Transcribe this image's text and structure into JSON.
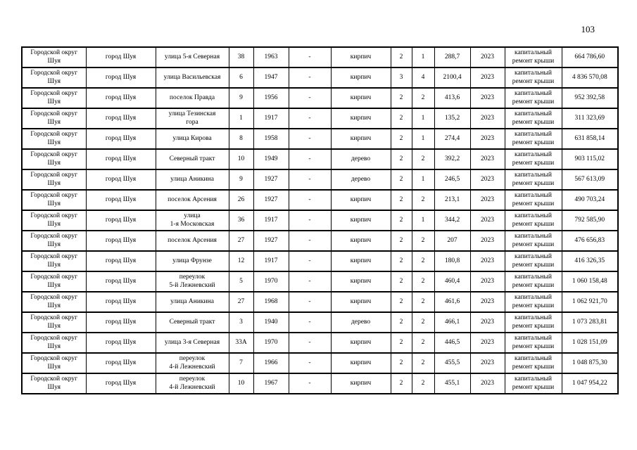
{
  "page": {
    "number": "103"
  },
  "table": {
    "column_keys": [
      "district",
      "settlement",
      "street",
      "house",
      "year_built",
      "dash",
      "material",
      "floors",
      "entrances",
      "area",
      "plan_year",
      "work_type",
      "cost"
    ],
    "rows": [
      {
        "district": "Городской округ\nШуя",
        "settlement": "город Шуя",
        "street": "улица 5-я Северная",
        "house": "38",
        "year_built": "1963",
        "dash": "-",
        "material": "кирпич",
        "floors": "2",
        "entrances": "1",
        "area": "288,7",
        "plan_year": "2023",
        "work_type": "капитальный\nремонт крыши",
        "cost": "664 786,60"
      },
      {
        "district": "Городской округ\nШуя",
        "settlement": "город Шуя",
        "street": "улица Васильевская",
        "house": "6",
        "year_built": "1947",
        "dash": "-",
        "material": "кирпич",
        "floors": "3",
        "entrances": "4",
        "area": "2100,4",
        "plan_year": "2023",
        "work_type": "капитальный\nремонт крыши",
        "cost": "4 836 570,08"
      },
      {
        "district": "Городской округ\nШуя",
        "settlement": "город Шуя",
        "street": "поселок Правда",
        "house": "9",
        "year_built": "1956",
        "dash": "-",
        "material": "кирпич",
        "floors": "2",
        "entrances": "2",
        "area": "413,6",
        "plan_year": "2023",
        "work_type": "капитальный\nремонт крыши",
        "cost": "952 392,58"
      },
      {
        "district": "Городской округ\nШуя",
        "settlement": "город Шуя",
        "street": "улица Тезинская\nгора",
        "house": "1",
        "year_built": "1917",
        "dash": "-",
        "material": "кирпич",
        "floors": "2",
        "entrances": "1",
        "area": "135,2",
        "plan_year": "2023",
        "work_type": "капитальный\nремонт крыши",
        "cost": "311 323,69"
      },
      {
        "district": "Городской округ\nШуя",
        "settlement": "город Шуя",
        "street": "улица Кирова",
        "house": "8",
        "year_built": "1958",
        "dash": "-",
        "material": "кирпич",
        "floors": "2",
        "entrances": "1",
        "area": "274,4",
        "plan_year": "2023",
        "work_type": "капитальный\nремонт крыши",
        "cost": "631 858,14"
      },
      {
        "district": "Городской округ\nШуя",
        "settlement": "город Шуя",
        "street": "Северный тракт",
        "house": "10",
        "year_built": "1949",
        "dash": "-",
        "material": "дерево",
        "floors": "2",
        "entrances": "2",
        "area": "392,2",
        "plan_year": "2023",
        "work_type": "капитальный\nремонт крыши",
        "cost": "903 115,02"
      },
      {
        "district": "Городской округ\nШуя",
        "settlement": "город Шуя",
        "street": "улица Аникина",
        "house": "9",
        "year_built": "1927",
        "dash": "-",
        "material": "дерево",
        "floors": "2",
        "entrances": "1",
        "area": "246,5",
        "plan_year": "2023",
        "work_type": "капитальный\nремонт крыши",
        "cost": "567 613,09"
      },
      {
        "district": "Городской округ\nШуя",
        "settlement": "город Шуя",
        "street": "поселок Арсения",
        "house": "26",
        "year_built": "1927",
        "dash": "-",
        "material": "кирпич",
        "floors": "2",
        "entrances": "2",
        "area": "213,1",
        "plan_year": "2023",
        "work_type": "капитальный\nремонт крыши",
        "cost": "490 703,24"
      },
      {
        "district": "Городской округ\nШуя",
        "settlement": "город Шуя",
        "street": "улица\n1-я Московская",
        "house": "36",
        "year_built": "1917",
        "dash": "-",
        "material": "кирпич",
        "floors": "2",
        "entrances": "1",
        "area": "344,2",
        "plan_year": "2023",
        "work_type": "капитальный\nремонт крыши",
        "cost": "792 585,90"
      },
      {
        "district": "Городской округ\nШуя",
        "settlement": "город Шуя",
        "street": "поселок Арсения",
        "house": "27",
        "year_built": "1927",
        "dash": "-",
        "material": "кирпич",
        "floors": "2",
        "entrances": "2",
        "area": "207",
        "plan_year": "2023",
        "work_type": "капитальный\nремонт крыши",
        "cost": "476 656,83"
      },
      {
        "district": "Городской округ\nШуя",
        "settlement": "город Шуя",
        "street": "улица Фрунзе",
        "house": "12",
        "year_built": "1917",
        "dash": "-",
        "material": "кирпич",
        "floors": "2",
        "entrances": "2",
        "area": "180,8",
        "plan_year": "2023",
        "work_type": "капитальный\nремонт крыши",
        "cost": "416 326,35"
      },
      {
        "district": "Городской округ\nШуя",
        "settlement": "город Шуя",
        "street": "переулок\n5-й Лежневский",
        "house": "5",
        "year_built": "1970",
        "dash": "-",
        "material": "кирпич",
        "floors": "2",
        "entrances": "2",
        "area": "460,4",
        "plan_year": "2023",
        "work_type": "капитальный\nремонт крыши",
        "cost": "1 060 158,48"
      },
      {
        "district": "Городской округ\nШуя",
        "settlement": "город Шуя",
        "street": "улица Аникина",
        "house": "27",
        "year_built": "1968",
        "dash": "-",
        "material": "кирпич",
        "floors": "2",
        "entrances": "2",
        "area": "461,6",
        "plan_year": "2023",
        "work_type": "капитальный\nремонт крыши",
        "cost": "1 062 921,70"
      },
      {
        "district": "Городской округ\nШуя",
        "settlement": "город Шуя",
        "street": "Северный тракт",
        "house": "3",
        "year_built": "1940",
        "dash": "-",
        "material": "дерево",
        "floors": "2",
        "entrances": "2",
        "area": "466,1",
        "plan_year": "2023",
        "work_type": "капитальный\nремонт крыши",
        "cost": "1 073 283,81"
      },
      {
        "district": "Городской округ\nШуя",
        "settlement": "город Шуя",
        "street": "улица 3-я Северная",
        "house": "33А",
        "year_built": "1970",
        "dash": "-",
        "material": "кирпич",
        "floors": "2",
        "entrances": "2",
        "area": "446,5",
        "plan_year": "2023",
        "work_type": "капитальный\nремонт крыши",
        "cost": "1 028 151,09"
      },
      {
        "district": "Городской округ\nШуя",
        "settlement": "город Шуя",
        "street": "переулок\n4-й Лежневский",
        "house": "7",
        "year_built": "1966",
        "dash": "-",
        "material": "кирпич",
        "floors": "2",
        "entrances": "2",
        "area": "455,5",
        "plan_year": "2023",
        "work_type": "капитальный\nремонт крыши",
        "cost": "1 048 875,30"
      },
      {
        "district": "Городской округ\nШуя",
        "settlement": "город Шуя",
        "street": "переулок\n4-й Лежневский",
        "house": "10",
        "year_built": "1967",
        "dash": "-",
        "material": "кирпич",
        "floors": "2",
        "entrances": "2",
        "area": "455,1",
        "plan_year": "2023",
        "work_type": "капитальный\nремонт крыши",
        "cost": "1 047 954,22"
      }
    ]
  }
}
